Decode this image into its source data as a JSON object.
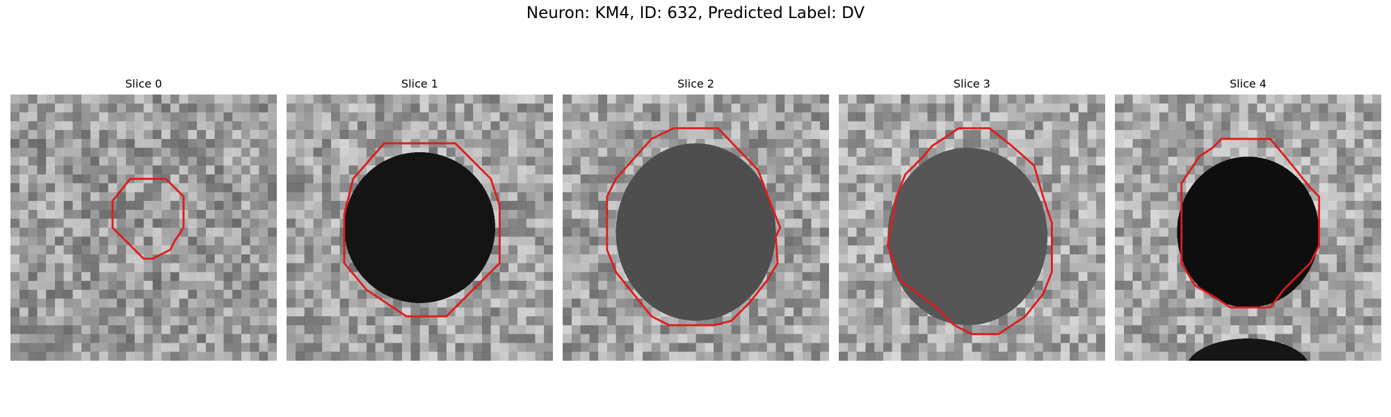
{
  "figure": {
    "title": "Neuron: KM4, ID: 632, Predicted Label: DV"
  },
  "panels": [
    {
      "title": "Slice 0"
    },
    {
      "title": "Slice 1"
    },
    {
      "title": "Slice 2"
    },
    {
      "title": "Slice 3"
    },
    {
      "title": "Slice 4"
    }
  ],
  "colors": {
    "contour": "#e01b1b"
  }
}
